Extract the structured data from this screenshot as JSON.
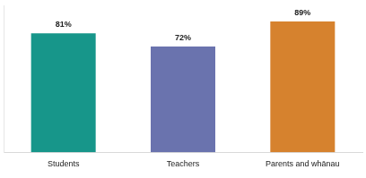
{
  "chart_data": {
    "type": "bar",
    "categories": [
      "Students",
      "Teachers",
      "Parents and whānau"
    ],
    "values": [
      81,
      72,
      89
    ],
    "value_labels": [
      "81%",
      "72%",
      "89%"
    ],
    "colors": [
      "#17968a",
      "#6a73ae",
      "#d6822e"
    ],
    "ylim": [
      0,
      100
    ],
    "grid": false,
    "data_labels": true,
    "tick_labels": "x"
  }
}
